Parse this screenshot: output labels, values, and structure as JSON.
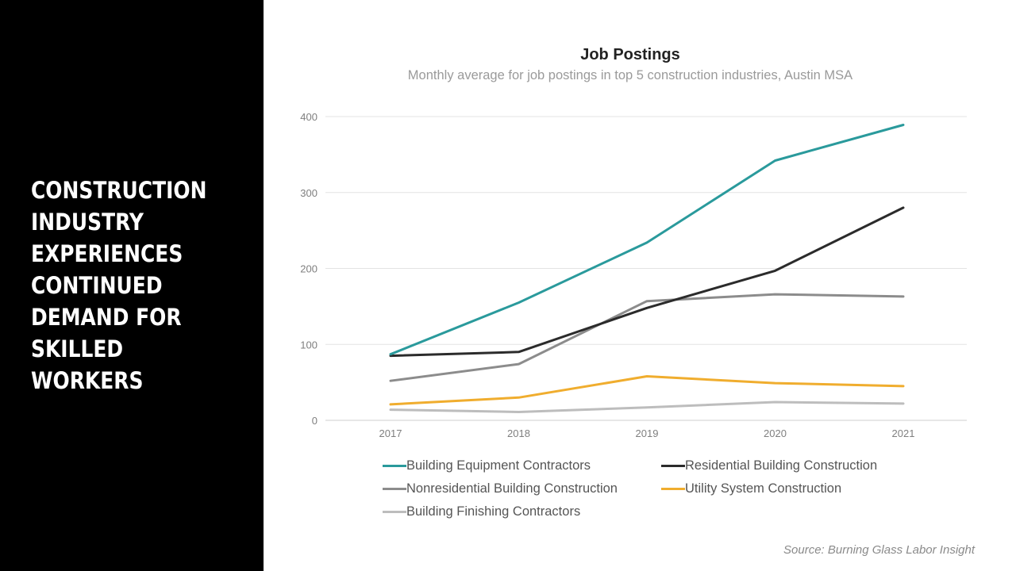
{
  "headline": {
    "lines": [
      "CONSTRUCTION",
      "INDUSTRY",
      "EXPERIENCES",
      "CONTINUED",
      "DEMAND FOR",
      "SKILLED",
      "WORKERS"
    ]
  },
  "source": "Source: Burning Glass Labor Insight",
  "chart_data": {
    "type": "line",
    "title": "Job Postings",
    "subtitle": "Monthly average for job postings in  top 5 construction industries, Austin MSA",
    "x": [
      "2017",
      "2018",
      "2019",
      "2020",
      "2021"
    ],
    "ylim": [
      0,
      400
    ],
    "yticks": [
      0,
      100,
      200,
      300,
      400
    ],
    "grid": true,
    "legend_position": "bottom",
    "series": [
      {
        "name": "Building Equipment Contractors",
        "color": "#2a9a9c",
        "values": [
          87,
          155,
          234,
          342,
          389
        ]
      },
      {
        "name": "Residential Building Construction",
        "color": "#2b2b2b",
        "values": [
          85,
          90,
          148,
          197,
          280
        ]
      },
      {
        "name": "Nonresidential Building Construction",
        "color": "#8c8c8c",
        "values": [
          52,
          74,
          157,
          166,
          163
        ]
      },
      {
        "name": "Utility System Construction",
        "color": "#f0ad2e",
        "values": [
          21,
          30,
          58,
          49,
          45
        ]
      },
      {
        "name": "Building Finishing Contractors",
        "color": "#bdbdbd",
        "values": [
          14,
          11,
          17,
          24,
          22
        ]
      }
    ]
  }
}
